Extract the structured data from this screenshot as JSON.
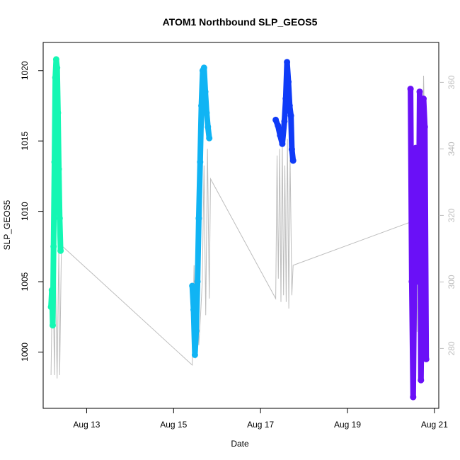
{
  "chart_data": {
    "type": "scatter",
    "title": "ATOM1 Northbound SLP_GEOS5",
    "xlabel": "Date",
    "ylabel": "SLP_GEOS5",
    "x_ticks": [
      "Aug 13",
      "Aug 15",
      "Aug 17",
      "Aug 19",
      "Aug 21"
    ],
    "x_tick_days": [
      13,
      15,
      17,
      19,
      21
    ],
    "xlim": [
      12.0,
      21.1
    ],
    "y_ticks": [
      1000,
      1005,
      1010,
      1015,
      1020
    ],
    "ylim": [
      996.0,
      1022.0
    ],
    "y2_ticks": [
      280,
      300,
      320,
      340,
      360
    ],
    "y2lim": [
      262.0,
      372.0
    ],
    "grid": false,
    "colors": {
      "seg1": "#14f7b3",
      "seg2": "#10b4f4",
      "seg3": "#0f3bf7",
      "seg4": "#6a10f7",
      "secondary": "#bdbdbd"
    },
    "series": [
      {
        "color": "seg1",
        "x": [
          12.18,
          12.2,
          12.22,
          12.24,
          12.26,
          12.28,
          12.3,
          12.32,
          12.34,
          12.36,
          12.38,
          12.4
        ],
        "y": [
          1003.2,
          1004.4,
          1001.9,
          1007.5,
          1013.5,
          1019.5,
          1020.8,
          1020.2,
          1017.0,
          1013.0,
          1009.5,
          1007.2
        ]
      },
      {
        "color": "seg2",
        "x": [
          15.43,
          15.46,
          15.49,
          15.52,
          15.55,
          15.58,
          15.61,
          15.64,
          15.67,
          15.7,
          15.73,
          15.76,
          15.79,
          15.82
        ],
        "y": [
          1004.7,
          1003.0,
          999.8,
          1001.5,
          1005.0,
          1009.5,
          1013.5,
          1017.5,
          1020.0,
          1020.2,
          1018.5,
          1017.0,
          1016.0,
          1015.2
        ]
      },
      {
        "color": "seg3",
        "x": [
          17.35,
          17.4,
          17.45,
          17.5,
          17.55,
          17.58,
          17.61,
          17.64,
          17.67,
          17.7,
          17.72,
          17.75
        ],
        "y": [
          1016.5,
          1016.1,
          1015.4,
          1014.8,
          1016.4,
          1018.0,
          1020.6,
          1019.2,
          1017.5,
          1016.8,
          1014.4,
          1013.6
        ]
      },
      {
        "color": "seg4",
        "x": [
          20.45,
          20.48,
          20.51,
          20.54,
          20.57,
          20.6,
          20.63,
          20.66,
          20.69,
          20.72,
          20.75,
          20.78,
          20.81
        ],
        "y": [
          1018.7,
          1005.0,
          996.8,
          1006.0,
          1014.5,
          1008.0,
          1005.0,
          1018.5,
          998.0,
          1006.5,
          1018.0,
          1016.0,
          999.5
        ]
      }
    ],
    "secondary_series": {
      "x": [
        12.18,
        12.22,
        12.26,
        12.28,
        12.32,
        12.36,
        12.38,
        12.42,
        15.43,
        15.47,
        15.5,
        15.54,
        15.58,
        15.62,
        15.66,
        15.7,
        15.74,
        15.78,
        15.82,
        15.85,
        17.35,
        17.38,
        17.41,
        17.44,
        17.47,
        17.5,
        17.53,
        17.56,
        17.59,
        17.62,
        17.65,
        17.68,
        17.72,
        17.75,
        20.45,
        20.5,
        20.55,
        20.6,
        20.65,
        20.7,
        20.75,
        20.8
      ],
      "y": [
        272,
        308,
        272,
        305,
        271,
        310,
        272,
        311,
        275,
        305,
        277,
        304,
        281,
        290,
        300,
        335,
        290,
        340,
        295,
        331,
        295,
        338,
        301,
        340,
        294,
        342,
        296,
        335,
        294,
        343,
        292,
        338,
        296,
        305,
        318,
        294,
        327,
        285,
        338,
        295,
        362,
        328
      ]
    }
  }
}
